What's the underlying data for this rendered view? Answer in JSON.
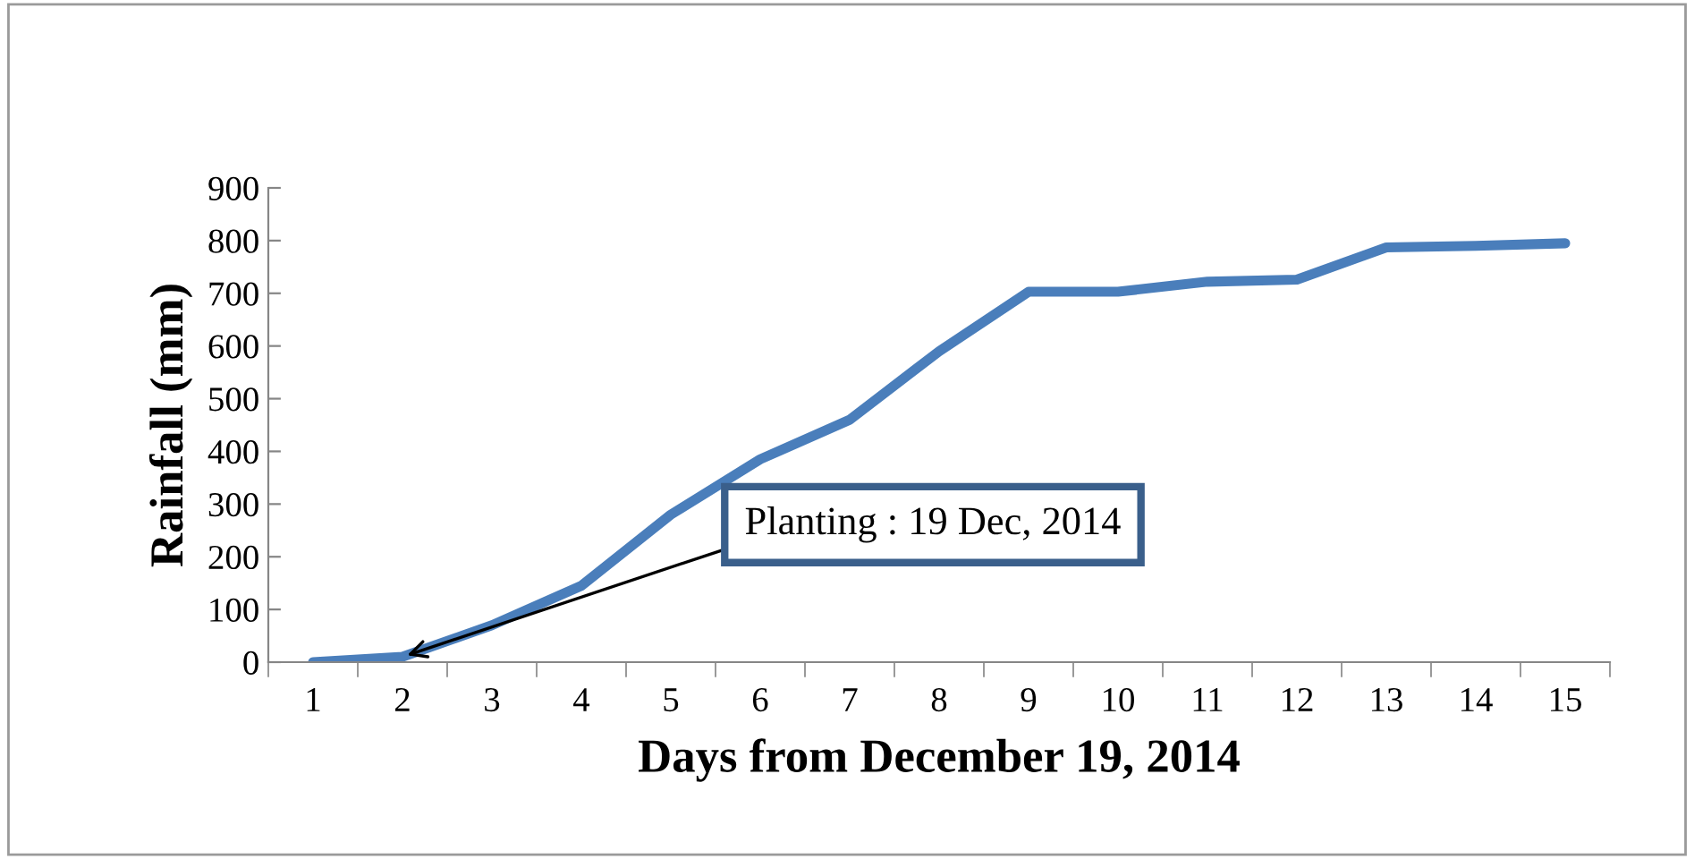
{
  "chart_data": {
    "type": "line",
    "xlabel": "Days from December 19, 2014",
    "ylabel": "Rainfall (mm)",
    "categories": [
      "1",
      "2",
      "3",
      "4",
      "5",
      "6",
      "7",
      "8",
      "9",
      "10",
      "11",
      "12",
      "13",
      "14",
      "15"
    ],
    "series": [
      {
        "color": "#4a7ebb",
        "values": [
          0,
          10,
          70,
          145,
          280,
          385,
          460,
          590,
          703,
          703,
          722,
          726,
          787,
          790,
          795
        ]
      }
    ],
    "ylim": [
      0,
      900
    ],
    "yticks": [
      0,
      100,
      200,
      300,
      400,
      500,
      600,
      700,
      800,
      900
    ],
    "grid": false,
    "legend": false,
    "marker": "none",
    "line_style": "solid",
    "annotations": [
      {
        "text": "Planting : 19 Dec, 2014",
        "x": "2",
        "y": 10
      }
    ]
  }
}
